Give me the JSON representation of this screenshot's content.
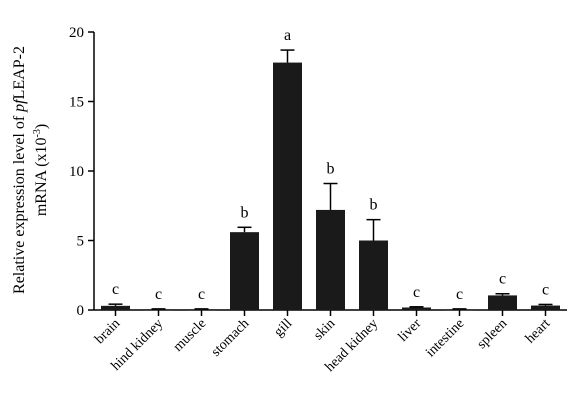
{
  "chart_data": {
    "type": "bar",
    "categories": [
      "brain",
      "hind kidney",
      "muscle",
      "stomach",
      "gill",
      "skin",
      "head kidney",
      "liver",
      "intestine",
      "spleen",
      "heart"
    ],
    "values": [
      0.3,
      0.05,
      0.05,
      5.6,
      17.8,
      7.2,
      5.0,
      0.18,
      0.05,
      1.05,
      0.32
    ],
    "errors": [
      0.12,
      0.03,
      0.03,
      0.35,
      0.9,
      1.9,
      1.5,
      0.05,
      0.03,
      0.12,
      0.08
    ],
    "significance": [
      "c",
      "c",
      "c",
      "b",
      "a",
      "b",
      "b",
      "c",
      "c",
      "c",
      "c"
    ],
    "ylabel_line1_prefix": "Relative expression level of ",
    "ylabel_line1_italic": "pf",
    "ylabel_line1_suffix": "LEAP-2",
    "ylabel_line2_prefix": "mRNA (x10",
    "ylabel_line2_sup": "-3",
    "ylabel_line2_suffix": ")",
    "ylim": [
      0,
      20
    ],
    "yticks": [
      0,
      5,
      10,
      15,
      20
    ],
    "grid": false,
    "bar_color": "#1a1a1a"
  }
}
